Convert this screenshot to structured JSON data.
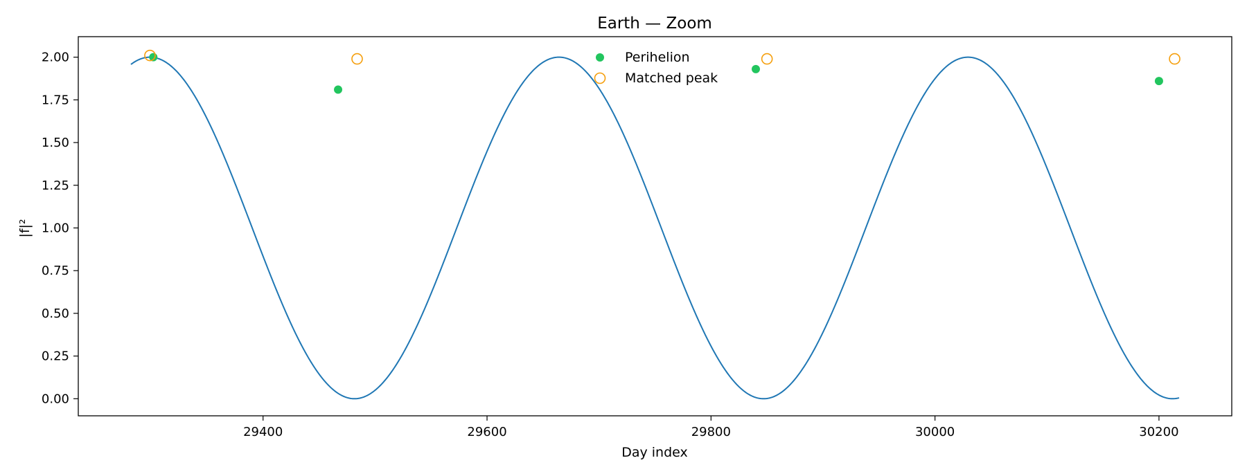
{
  "chart_data": {
    "type": "line",
    "title": "Earth — Zoom",
    "xlabel": "Day index",
    "ylabel": "|f|²",
    "xlim": [
      29235,
      30265
    ],
    "ylim": [
      -0.1,
      2.12
    ],
    "x_ticks": [
      29400,
      29600,
      29800,
      30000,
      30200
    ],
    "x_tick_labels": [
      "29400",
      "29600",
      "29800",
      "30000",
      "30200"
    ],
    "y_ticks": [
      0.0,
      0.25,
      0.5,
      0.75,
      1.0,
      1.25,
      1.5,
      1.75,
      2.0
    ],
    "y_tick_labels": [
      "0.00",
      "0.25",
      "0.50",
      "0.75",
      "1.00",
      "1.25",
      "1.50",
      "1.75",
      "2.00"
    ],
    "grid": false,
    "legend_position": "top-center",
    "signal": {
      "name": "|f|²",
      "color": "#1f77b4",
      "x_start": 29282,
      "x_end": 30218,
      "period": 365.25,
      "peak_x": 29299,
      "amplitude": 1.0,
      "offset": 1.0
    },
    "series": [
      {
        "name": "Perihelion",
        "marker": "filled-circle",
        "color": "#22c55e",
        "x": [
          29302,
          29467,
          29840,
          30200
        ],
        "y": [
          2.0,
          1.81,
          1.93,
          1.86
        ]
      },
      {
        "name": "Matched peak",
        "marker": "open-circle",
        "color": "#f59e0b",
        "x": [
          29299,
          29484,
          29850,
          30214
        ],
        "y": [
          2.01,
          1.99,
          1.99,
          1.99
        ]
      }
    ]
  }
}
